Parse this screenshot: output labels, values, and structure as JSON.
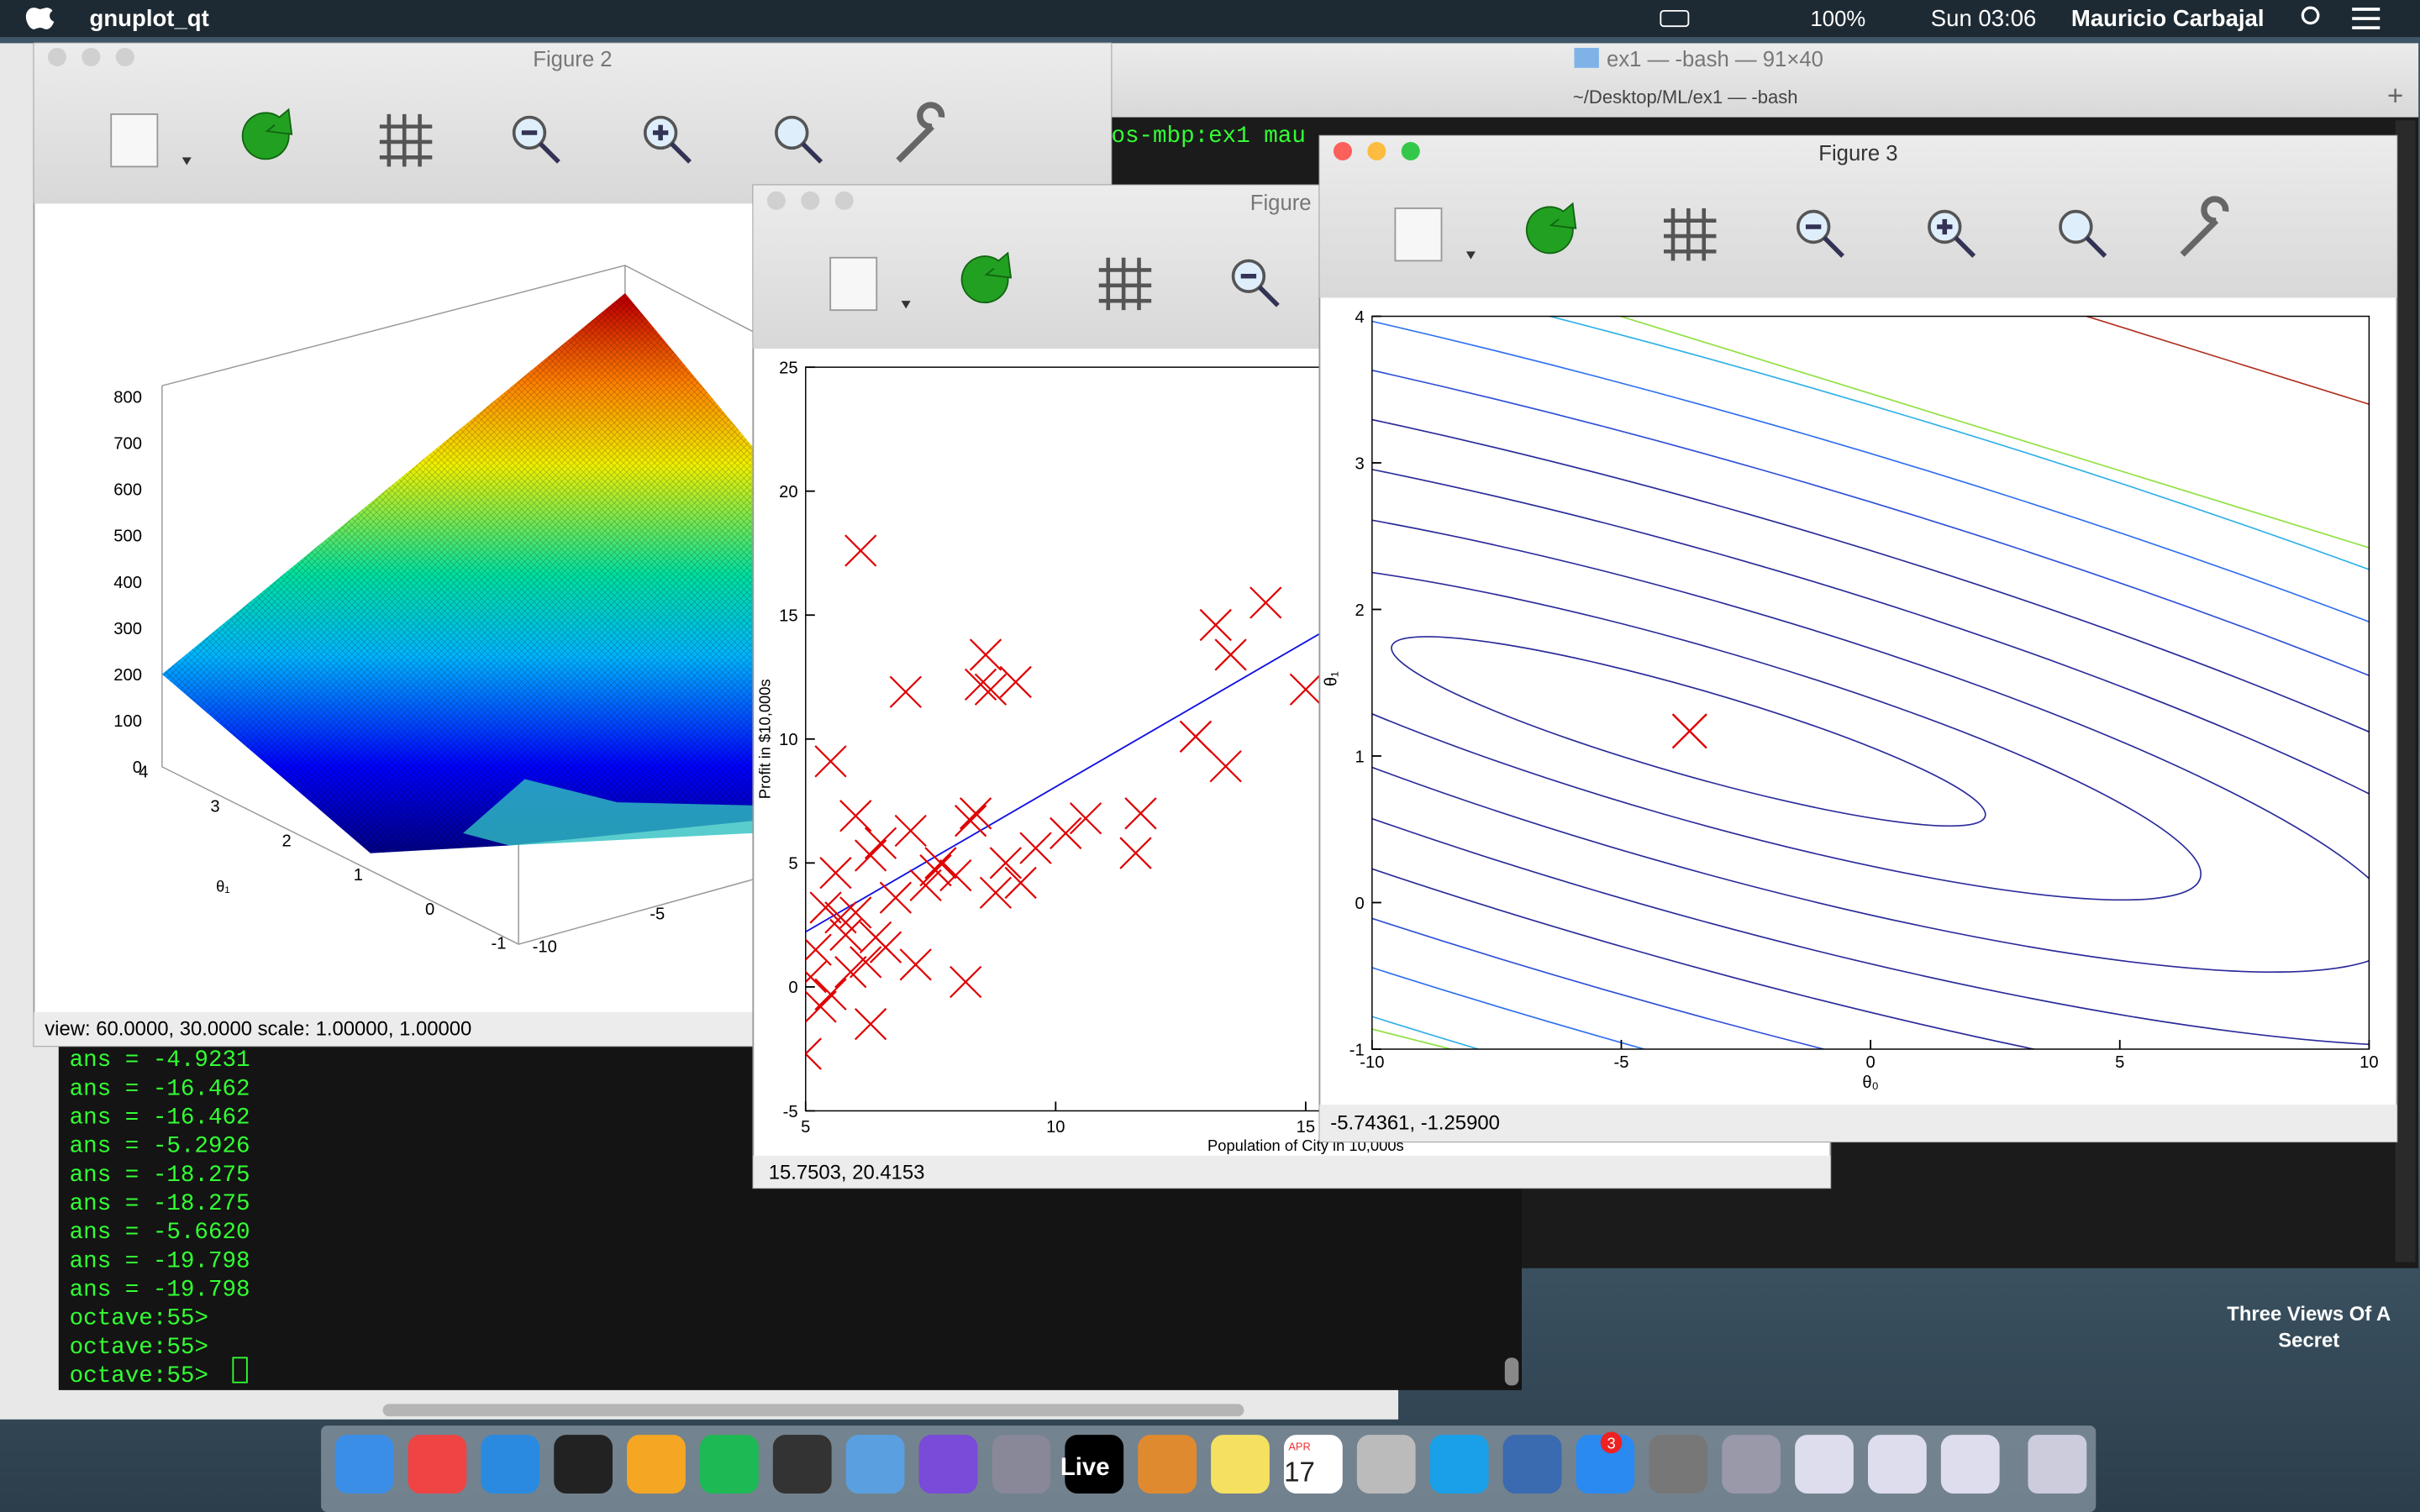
{
  "menu_bar": {
    "app": "gnuplot_qt",
    "battery": "100%",
    "clock": "Sun 03:06",
    "user": "Mauricio Carbajal"
  },
  "terminal_window": {
    "title": "ex1 — -bash — 91×40",
    "subtitle": "~/Desktop/ML/ex1 — -bash",
    "prompt_fragment": "os-mbp:ex1 mau"
  },
  "figure_2": {
    "title": "Figure 2",
    "z_ticks": [
      800,
      700,
      600,
      500,
      400,
      300,
      200,
      100,
      0
    ],
    "theta1_ticks": [
      4,
      3,
      2,
      1,
      0,
      -1
    ],
    "theta0_ticks": [
      -10,
      -5
    ],
    "theta1_label": "θ₁",
    "status": "view: 60.0000,  30.0000   scale: 1.00000,  1.00000"
  },
  "figure_1": {
    "title": "Figure",
    "xlabel": "Population of City in 10,000s",
    "ylabel": "Profit in $10,000s",
    "xlim": [
      5,
      15.4
    ],
    "ylim": [
      -5,
      25
    ],
    "xticks": [
      5,
      10,
      15
    ],
    "yticks": [
      -5,
      0,
      5,
      10,
      15,
      20,
      25
    ],
    "points": {
      "x": [
        6.1,
        7.0,
        8.5,
        8.7,
        9.2,
        8.6,
        5.5,
        13.2,
        14.2,
        13.5,
        12.8,
        15.0,
        12.8,
        13.4,
        11.7,
        11.6,
        10.6,
        10.2,
        8.2,
        5.0,
        5.2,
        5.4,
        5.6,
        5.8,
        6.0,
        6.3,
        6.5,
        6.8,
        7.1,
        7.4,
        7.7,
        8.0,
        8.3,
        8.8,
        9.3,
        9.6,
        5.1,
        5.3,
        5.7,
        6.2,
        6.6,
        7.2,
        7.6,
        8.4,
        9.0,
        5.5,
        6.0,
        6.4,
        5.9,
        6.3
      ],
      "y": [
        17.6,
        11.9,
        12.2,
        12.0,
        12.3,
        13.4,
        9.1,
        14.6,
        15.5,
        13.4,
        10.1,
        12.0,
        10.1,
        8.9,
        7.0,
        5.4,
        6.8,
        6.2,
        0.2,
        -2.7,
        1.5,
        3.2,
        4.6,
        2.1,
        6.9,
        5.3,
        5.8,
        3.6,
        6.3,
        4.1,
        5.0,
        4.5,
        6.7,
        3.8,
        4.2,
        5.6,
        0.4,
        -0.8,
        2.8,
        1.0,
        1.6,
        0.9,
        4.7,
        7.0,
        5.0,
        -0.3,
        3.0,
        2.0,
        0.6,
        -1.5
      ]
    },
    "status": "15.7503,  20.4153"
  },
  "figure_3": {
    "title": "Figure 3",
    "xlim": [
      -10,
      10
    ],
    "ylim": [
      -1,
      4
    ],
    "xticks": [
      -10,
      -5,
      0,
      5,
      10
    ],
    "yticks": [
      -1,
      0,
      1,
      2,
      3,
      4
    ],
    "xlabel": "θ₀",
    "ylabel": "θ₁",
    "minimum": {
      "x": -3.63,
      "y": 1.17
    },
    "status": "-5.74361, -1.25900"
  },
  "octave": {
    "lines": [
      "ans = -4.9231",
      "ans = -16.462",
      "ans = -16.462",
      "ans = -5.2926",
      "ans = -18.275",
      "ans = -18.275",
      "ans = -5.6620",
      "ans = -19.798",
      "ans = -19.798",
      "octave:55>",
      "octave:55>",
      "octave:55>"
    ]
  },
  "desktop": {
    "album": "Three Views Of A",
    "album_line2": "Secret"
  },
  "dock": {
    "live": "Live",
    "calendar_month": "APR",
    "calendar_day": "17",
    "app_store_badge": "3"
  }
}
